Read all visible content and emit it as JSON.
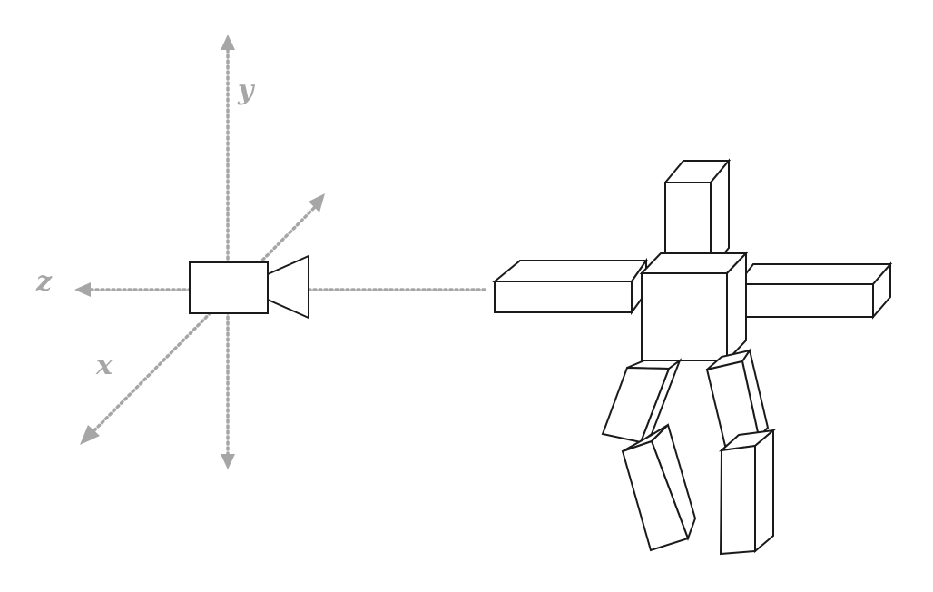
{
  "colors": {
    "axis": "#a6a6a6",
    "line": "#1a1a1a",
    "background": "#ffffff"
  },
  "axes": {
    "x_label": "x",
    "y_label": "y",
    "z_label": "z"
  },
  "icons": [
    "camera-icon",
    "humanoid-figure-icon"
  ]
}
